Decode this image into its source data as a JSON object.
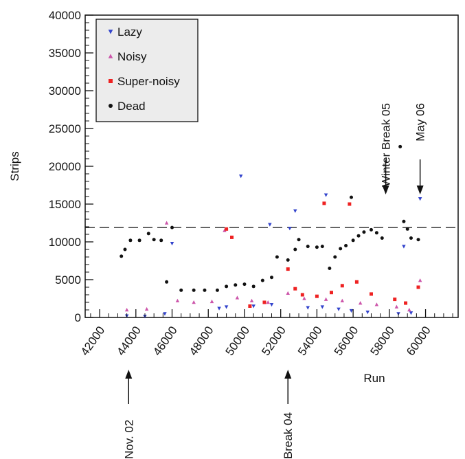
{
  "chart_data": {
    "type": "scatter",
    "xlabel": "Run",
    "ylabel": "Strips",
    "xlim": [
      41200,
      61800
    ],
    "ylim": [
      0,
      40000
    ],
    "xticks": [
      42000,
      44000,
      46000,
      48000,
      50000,
      52000,
      54000,
      56000,
      58000,
      60000
    ],
    "yticks": [
      0,
      5000,
      10000,
      15000,
      20000,
      25000,
      30000,
      35000,
      40000
    ],
    "grid": false,
    "legend_position": "top-left",
    "reference_line": {
      "y": 11900,
      "style": "dashed"
    },
    "series": [
      {
        "name": "Lazy",
        "marker": "triangle-down",
        "color": "#3344cc",
        "points": [
          [
            43500,
            200
          ],
          [
            44500,
            150
          ],
          [
            45600,
            500
          ],
          [
            46000,
            9800
          ],
          [
            48600,
            1200
          ],
          [
            49000,
            1400
          ],
          [
            49800,
            18700
          ],
          [
            50500,
            1500
          ],
          [
            51400,
            12300
          ],
          [
            51500,
            1700
          ],
          [
            52500,
            11800
          ],
          [
            52800,
            14100
          ],
          [
            53500,
            1300
          ],
          [
            54300,
            1400
          ],
          [
            54500,
            16200
          ],
          [
            55200,
            1100
          ],
          [
            55900,
            900
          ],
          [
            56800,
            700
          ],
          [
            58500,
            500
          ],
          [
            58800,
            9400
          ],
          [
            59200,
            600
          ],
          [
            59700,
            15700
          ]
        ]
      },
      {
        "name": "Noisy",
        "marker": "triangle-up",
        "color": "#cc55aa",
        "points": [
          [
            43500,
            1000
          ],
          [
            44600,
            1100
          ],
          [
            45700,
            12500
          ],
          [
            46300,
            2200
          ],
          [
            47200,
            2000
          ],
          [
            48200,
            2100
          ],
          [
            48900,
            11500
          ],
          [
            49600,
            2600
          ],
          [
            50400,
            2200
          ],
          [
            51300,
            2000
          ],
          [
            52400,
            3200
          ],
          [
            53300,
            2500
          ],
          [
            54500,
            2400
          ],
          [
            55400,
            2200
          ],
          [
            56400,
            1900
          ],
          [
            57300,
            1700
          ],
          [
            58400,
            1400
          ],
          [
            59100,
            1000
          ],
          [
            59700,
            4900
          ]
        ]
      },
      {
        "name": "Super-noisy",
        "marker": "square",
        "color": "#ee2222",
        "points": [
          [
            49000,
            11700
          ],
          [
            49300,
            10600
          ],
          [
            50300,
            1500
          ],
          [
            51100,
            2000
          ],
          [
            52400,
            6400
          ],
          [
            52800,
            3800
          ],
          [
            53200,
            3000
          ],
          [
            54000,
            2800
          ],
          [
            54400,
            15100
          ],
          [
            54800,
            3300
          ],
          [
            55400,
            4200
          ],
          [
            55800,
            15000
          ],
          [
            56200,
            4700
          ],
          [
            57000,
            3100
          ],
          [
            58300,
            2400
          ],
          [
            58900,
            1900
          ],
          [
            59600,
            4000
          ]
        ]
      },
      {
        "name": "Dead",
        "marker": "circle",
        "color": "#111111",
        "points": [
          [
            43200,
            8100
          ],
          [
            43400,
            9000
          ],
          [
            43700,
            10200
          ],
          [
            44200,
            10200
          ],
          [
            44700,
            11100
          ],
          [
            45000,
            10300
          ],
          [
            45400,
            10200
          ],
          [
            45700,
            4700
          ],
          [
            46000,
            11900
          ],
          [
            46500,
            3600
          ],
          [
            47200,
            3600
          ],
          [
            47800,
            3600
          ],
          [
            48500,
            3600
          ],
          [
            49000,
            4100
          ],
          [
            49500,
            4300
          ],
          [
            50000,
            4400
          ],
          [
            50500,
            4100
          ],
          [
            51000,
            4900
          ],
          [
            51500,
            5300
          ],
          [
            51800,
            8000
          ],
          [
            52400,
            7600
          ],
          [
            52800,
            9000
          ],
          [
            53000,
            10300
          ],
          [
            53500,
            9400
          ],
          [
            54000,
            9300
          ],
          [
            54300,
            9400
          ],
          [
            54700,
            6500
          ],
          [
            55000,
            8000
          ],
          [
            55300,
            9100
          ],
          [
            55600,
            9500
          ],
          [
            56000,
            10200
          ],
          [
            56300,
            10800
          ],
          [
            56600,
            11300
          ],
          [
            57000,
            11600
          ],
          [
            57300,
            11200
          ],
          [
            57600,
            10500
          ],
          [
            58600,
            22600
          ],
          [
            58800,
            12700
          ],
          [
            59000,
            11700
          ],
          [
            59200,
            10500
          ],
          [
            59600,
            10300
          ],
          [
            55900,
            15900
          ]
        ]
      }
    ],
    "annotations": [
      {
        "text": "Nov. 02",
        "x": 43600,
        "arrow": "up"
      },
      {
        "text": "Break 04",
        "x": 52400,
        "arrow": "up"
      },
      {
        "text": "Winter Break 05",
        "x": 57800,
        "arrow": "down"
      },
      {
        "text": "May 06",
        "x": 59700,
        "arrow": "down"
      }
    ]
  }
}
